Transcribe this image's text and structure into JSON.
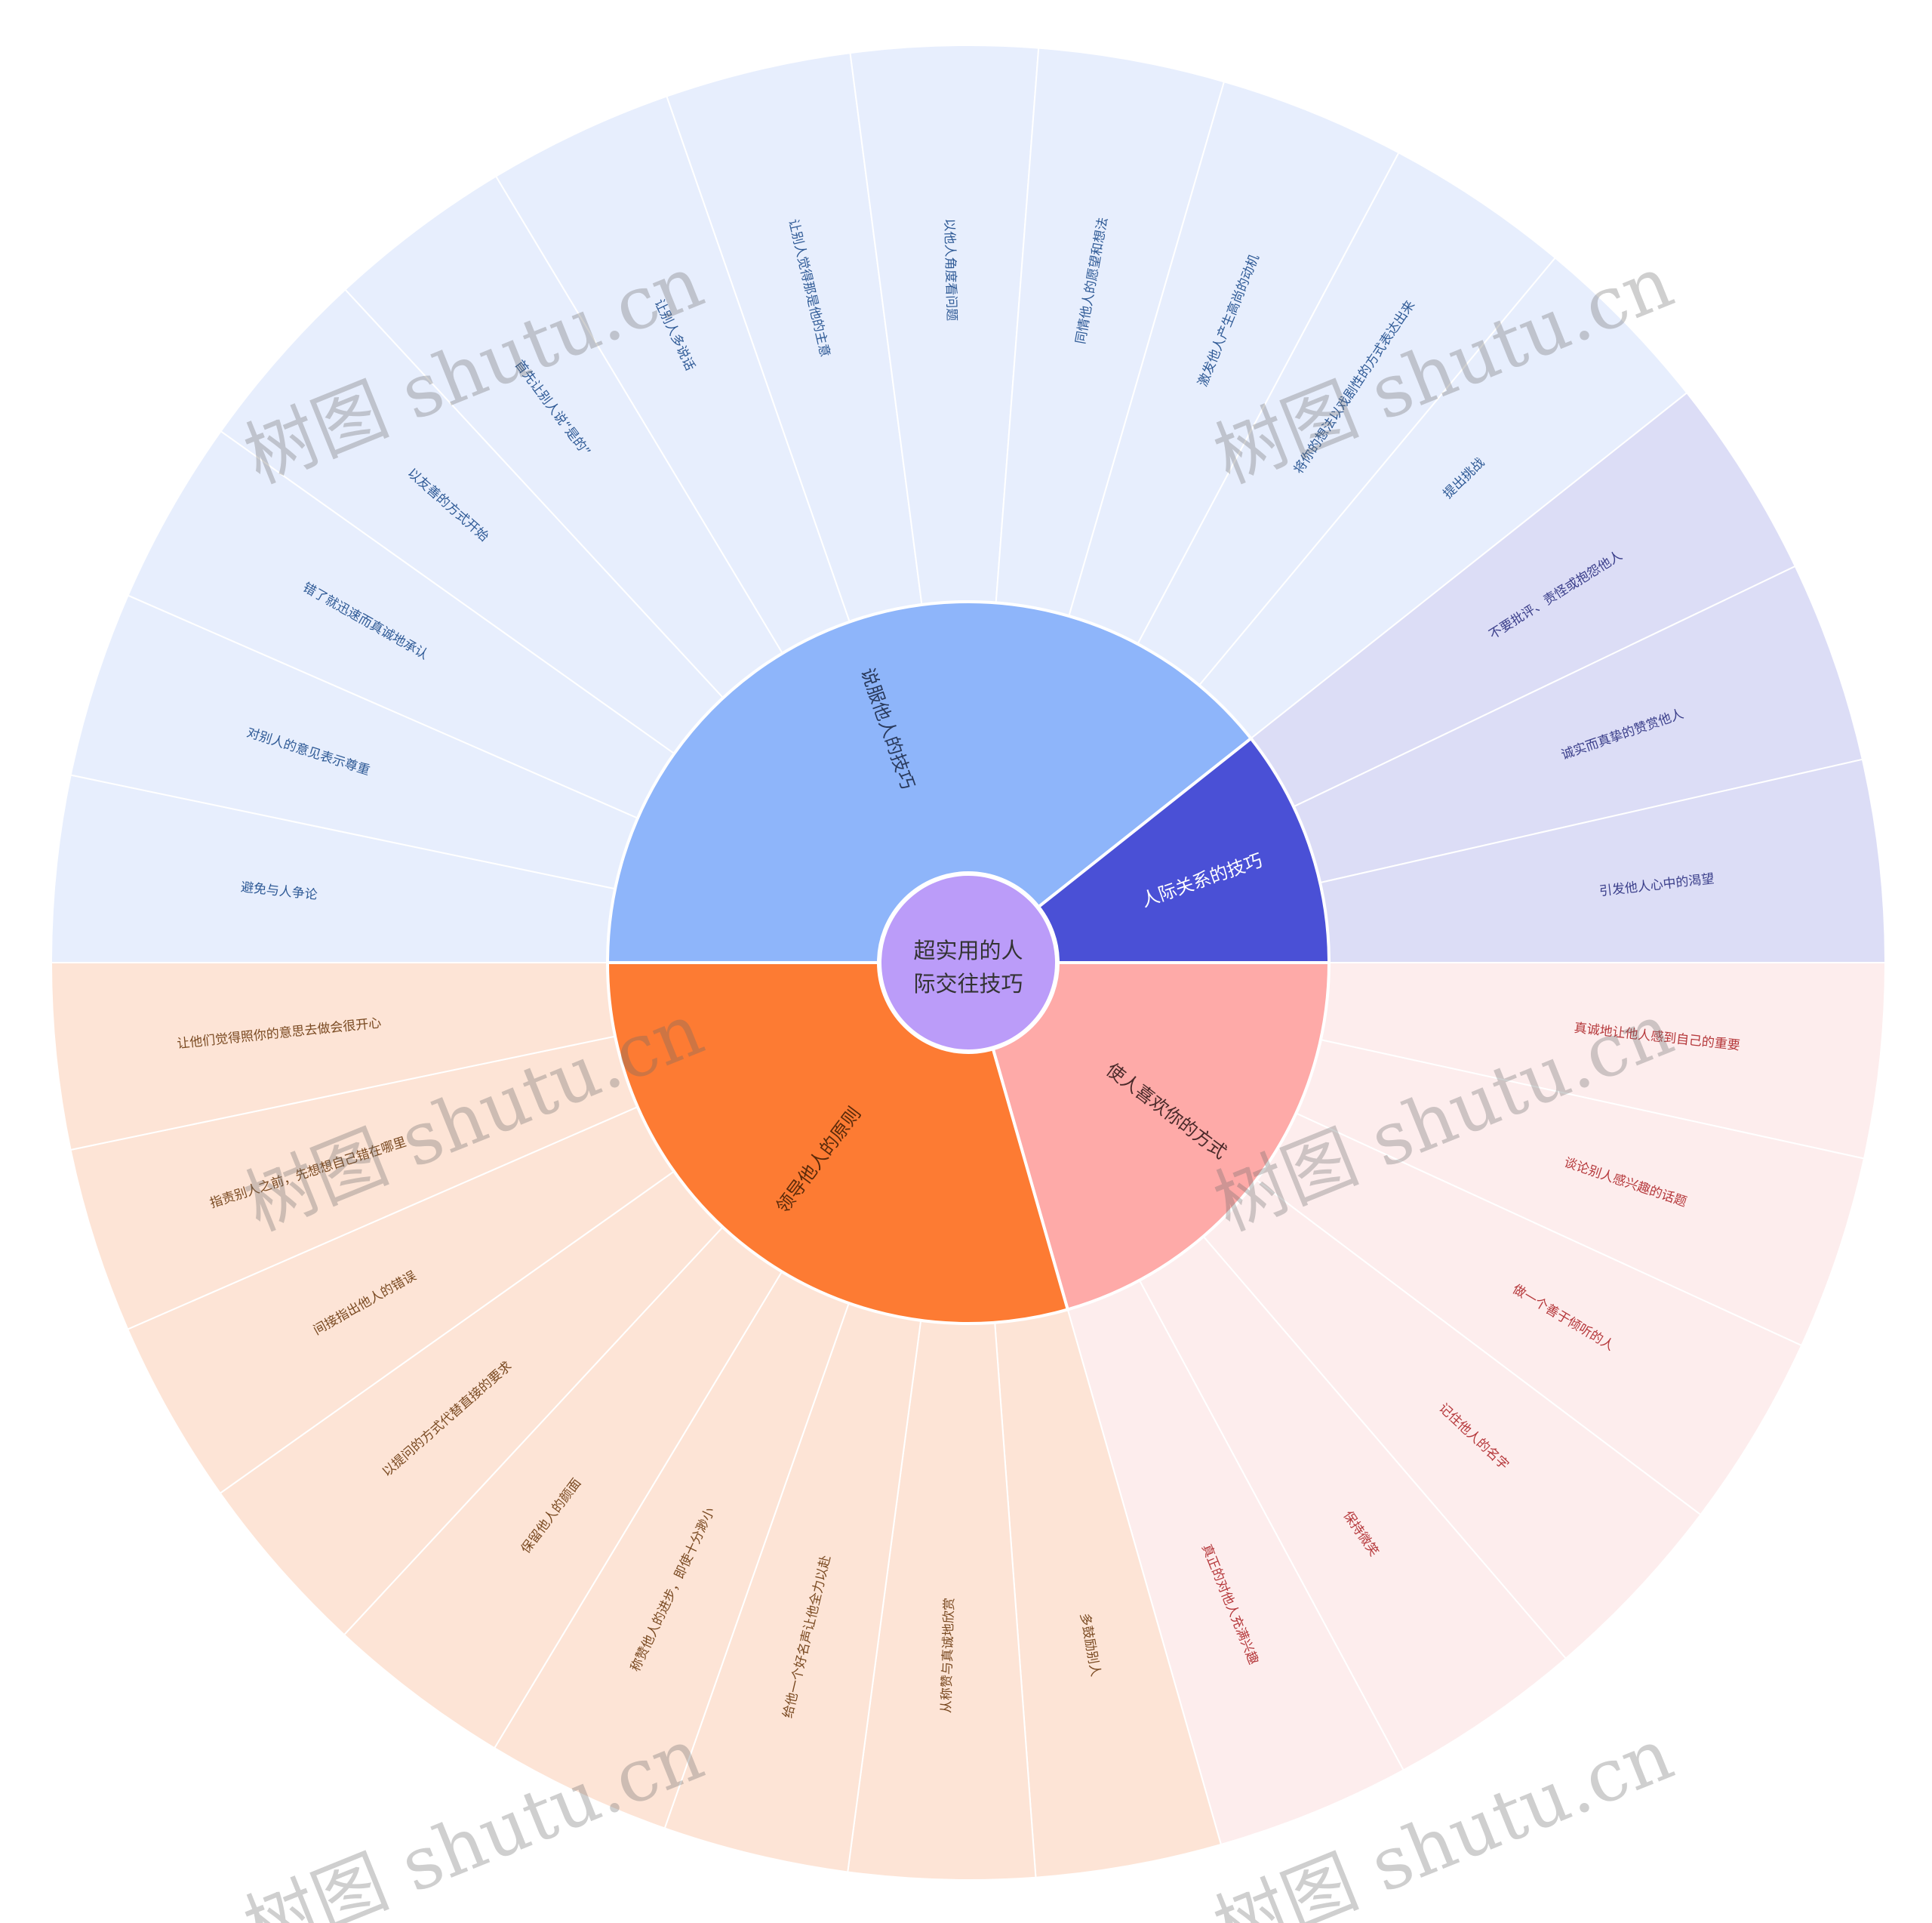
{
  "center": {
    "label_line1": "超实用的人",
    "label_line2": "际交往技巧",
    "color": "#BB9CF9"
  },
  "branches": [
    {
      "name": "说服他人的技巧",
      "color": "#8EB5FA",
      "leaf_fill": "#E7EEFD",
      "leaf_text": "#2F5A96",
      "branch_text": "#2A3A5C",
      "leaves": [
        "避免与人争论",
        "对别人的意见表示尊重",
        "错了就迅速而真诚地承认",
        "以友善的方式开始",
        "首先让别人说“是的”",
        "让别人多说话",
        "让别人觉得那是他的主意",
        "以他人角度看问题",
        "同情他人的愿望和想法",
        "激发他人产生高尚的动机",
        "将你的想法以戏剧性的方式表达出来",
        "提出挑战"
      ]
    },
    {
      "name": "人际关系的技巧",
      "color": "#4A50D6",
      "leaf_fill": "#DCDDF6",
      "leaf_text": "#3A3E8A",
      "branch_text": "#FFFFFF",
      "leaves": [
        "不要批评、责怪或抱怨他人",
        "诚实而真挚的赞赏他人",
        "引发他人心中的渴望"
      ]
    },
    {
      "name": "使人喜欢你的方式",
      "color": "#FEAAA8",
      "leaf_fill": "#FDEDED",
      "leaf_text": "#B5383B",
      "branch_text": "#4A2A2A",
      "leaves": [
        "真诚地让他人感到自己的重要",
        "谈论别人感兴趣的话题",
        "做一个善于倾听的人",
        "记住他人的名字",
        "保持微笑",
        "真正的对他人充满兴趣"
      ]
    },
    {
      "name": "领导他人的原则",
      "color": "#FD7B33",
      "leaf_fill": "#FDE4D6",
      "leaf_text": "#7A4A22",
      "branch_text": "#5A2A0A",
      "leaves": [
        "多鼓励别人",
        "从称赞与真诚地欣赏",
        "给他一个好名声让他全力以赴",
        "称赞他人的进步，即使十分渺小",
        "保留他人的颜面",
        "以提问的方式代替直接的要求",
        "间接指出他人的错误",
        "指责别人之前，先想想自己错在哪里",
        "让他们觉得照你的意思去做会很开心"
      ]
    }
  ],
  "watermark": "树图 shutu.cn"
}
